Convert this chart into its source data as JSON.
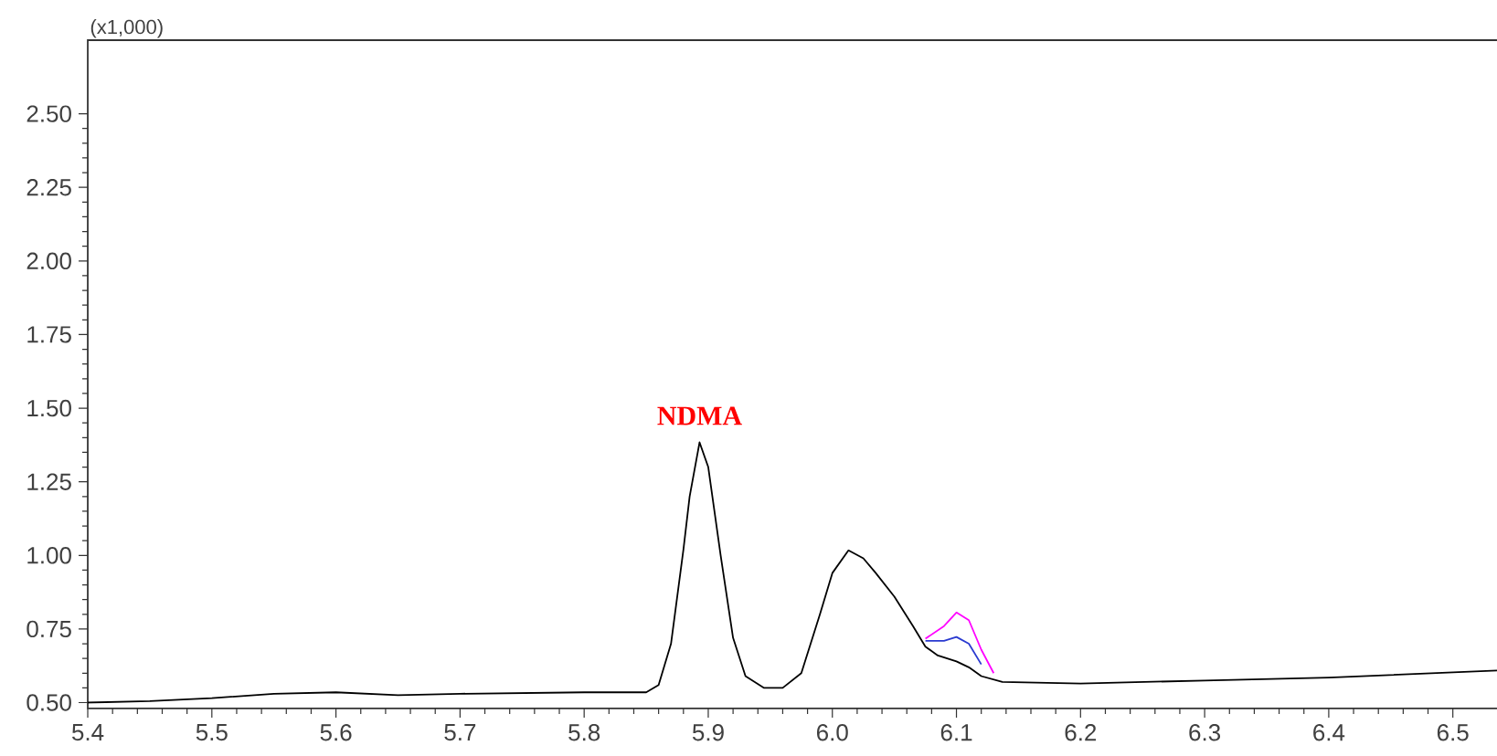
{
  "chart_data": {
    "type": "line",
    "annotations": [
      "(x1,000)",
      {
        "text": "NDMA",
        "x": 5.893,
        "y": 1.384
      }
    ],
    "xlim": [
      5.4,
      6.54
    ],
    "ylim": [
      0.48,
      2.75
    ],
    "xticks": [
      {
        "value": 5.4,
        "label": "5.4"
      },
      {
        "value": 5.5,
        "label": "5.5"
      },
      {
        "value": 5.6,
        "label": "5.6"
      },
      {
        "value": 5.7,
        "label": "5.7"
      },
      {
        "value": 5.8,
        "label": "5.8"
      },
      {
        "value": 5.9,
        "label": "5.9"
      },
      {
        "value": 6.0,
        "label": "6.0"
      },
      {
        "value": 6.1,
        "label": "6.1"
      },
      {
        "value": 6.2,
        "label": "6.2"
      },
      {
        "value": 6.3,
        "label": "6.3"
      },
      {
        "value": 6.4,
        "label": "6.4"
      },
      {
        "value": 6.5,
        "label": "6.5"
      }
    ],
    "yticks": [
      {
        "value": 0.5,
        "label": "0.50"
      },
      {
        "value": 0.75,
        "label": "0.75"
      },
      {
        "value": 1.0,
        "label": "1.00"
      },
      {
        "value": 1.25,
        "label": "1.25"
      },
      {
        "value": 1.5,
        "label": "1.50"
      },
      {
        "value": 1.75,
        "label": "1.75"
      },
      {
        "value": 2.0,
        "label": "2.00"
      },
      {
        "value": 2.25,
        "label": "2.25"
      },
      {
        "value": 2.5,
        "label": "2.50"
      }
    ],
    "marker": "none",
    "line_style": "solid",
    "series": [
      {
        "color": "#ff00ff",
        "x": [
          6.075,
          6.09,
          6.1,
          6.11,
          6.12,
          6.13
        ],
        "values": [
          0.717,
          0.76,
          0.806,
          0.78,
          0.68,
          0.6
        ]
      },
      {
        "color": "#2a3ad0",
        "x": [
          6.075,
          6.09,
          6.1,
          6.11,
          6.12
        ],
        "values": [
          0.71,
          0.71,
          0.723,
          0.7,
          0.63
        ]
      },
      {
        "color": "#000000",
        "x": [
          5.4,
          5.45,
          5.5,
          5.55,
          5.6,
          5.65,
          5.7,
          5.8,
          5.85,
          5.86,
          5.87,
          5.88,
          5.885,
          5.893,
          5.9,
          5.91,
          5.92,
          5.93,
          5.945,
          5.96,
          5.975,
          5.99,
          6.0,
          6.013,
          6.025,
          6.035,
          6.05,
          6.065,
          6.075,
          6.085,
          6.1,
          6.11,
          6.12,
          6.137,
          6.2,
          6.3,
          6.4,
          6.54
        ],
        "values": [
          0.5,
          0.505,
          0.515,
          0.53,
          0.535,
          0.525,
          0.53,
          0.535,
          0.535,
          0.56,
          0.7,
          1.02,
          1.2,
          1.384,
          1.3,
          1.0,
          0.72,
          0.59,
          0.55,
          0.55,
          0.6,
          0.8,
          0.94,
          1.017,
          0.99,
          0.94,
          0.86,
          0.76,
          0.69,
          0.66,
          0.64,
          0.62,
          0.59,
          0.57,
          0.565,
          0.575,
          0.585,
          0.61
        ]
      }
    ]
  }
}
